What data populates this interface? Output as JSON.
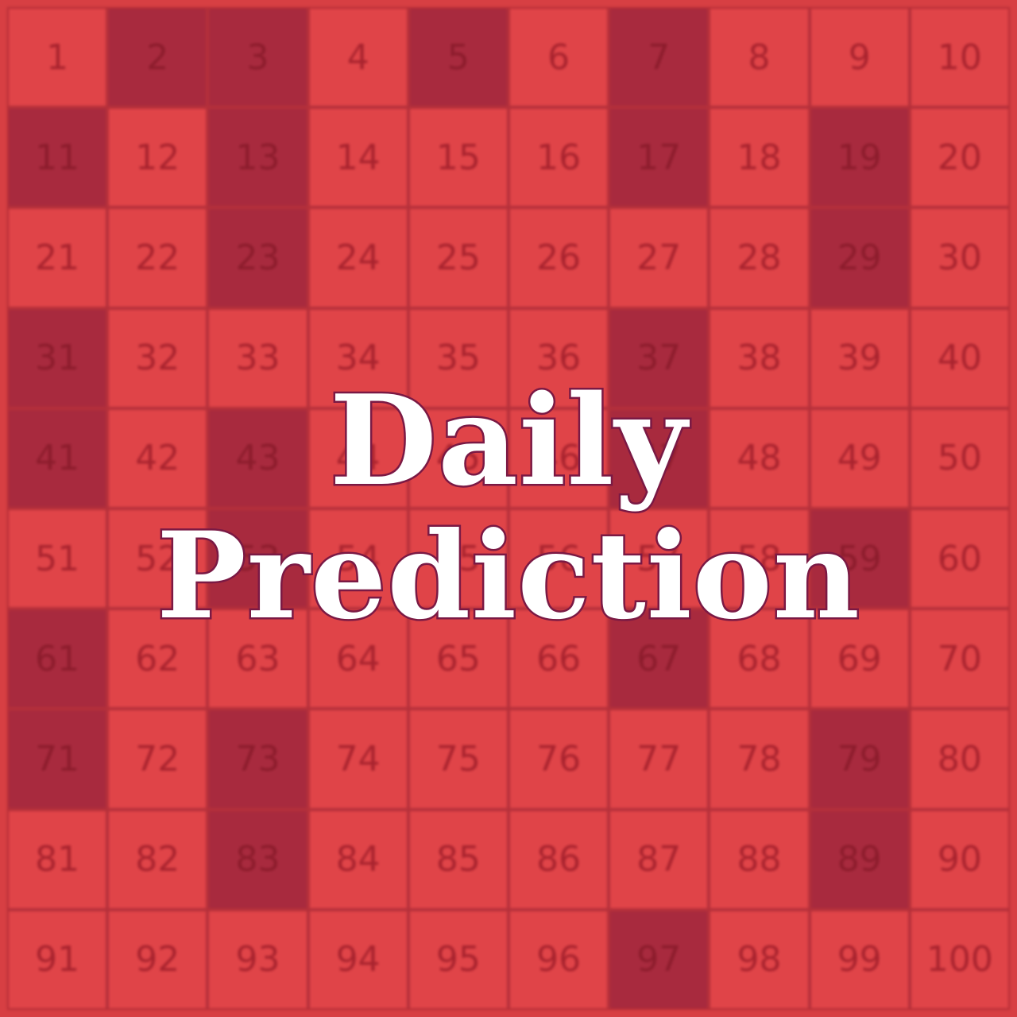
{
  "colors": {
    "background": "#d73f43",
    "cell": "#e04448",
    "highlighted_cell": "#a82a3e",
    "number_text": "#a8232e",
    "title_fill": "#ffffff",
    "title_outline": "#7b1a45"
  },
  "board": {
    "cells": [
      1,
      2,
      3,
      4,
      5,
      6,
      7,
      8,
      9,
      10,
      11,
      12,
      13,
      14,
      15,
      16,
      17,
      18,
      19,
      20,
      21,
      22,
      23,
      24,
      25,
      26,
      27,
      28,
      29,
      30,
      31,
      32,
      33,
      34,
      35,
      36,
      37,
      38,
      39,
      40,
      41,
      42,
      43,
      44,
      45,
      46,
      47,
      48,
      49,
      50,
      51,
      52,
      53,
      54,
      55,
      56,
      57,
      58,
      59,
      60,
      61,
      62,
      63,
      64,
      65,
      66,
      67,
      68,
      69,
      70,
      71,
      72,
      73,
      74,
      75,
      76,
      77,
      78,
      79,
      80,
      81,
      82,
      83,
      84,
      85,
      86,
      87,
      88,
      89,
      90,
      91,
      92,
      93,
      94,
      95,
      96,
      97,
      98,
      99,
      100
    ],
    "highlighted": [
      2,
      3,
      5,
      7,
      11,
      13,
      17,
      19,
      23,
      29,
      31,
      37,
      41,
      43,
      47,
      53,
      59,
      61,
      67,
      71,
      73,
      79,
      83,
      89,
      97
    ]
  },
  "title": {
    "line1": "Daily",
    "line2": "Prediction"
  }
}
